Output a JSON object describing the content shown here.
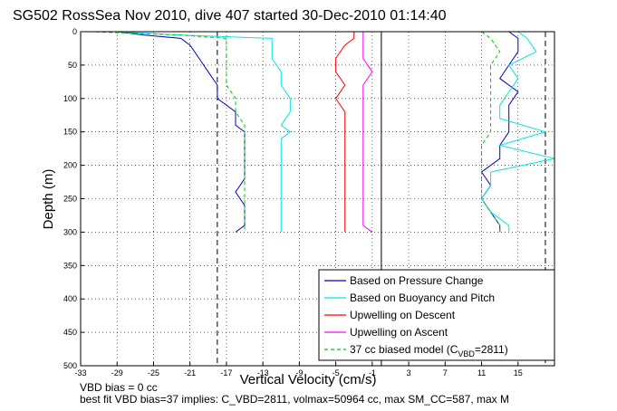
{
  "chart_data": {
    "type": "line",
    "title": "SG502 RossSea Nov 2010, dive 407 started 30-Dec-2010 01:14:40",
    "xlabel": "Vertical Velocity (cm/s)",
    "ylabel": "Depth (m)",
    "xlim": [
      -33,
      19
    ],
    "ylim": [
      500,
      0
    ],
    "y_reversed": true,
    "x_ticks": [
      "-33",
      "-29",
      "-25",
      "-21",
      "-17",
      "-13",
      "-9",
      "-5",
      "-1",
      "3",
      "7",
      "11",
      "15"
    ],
    "y_ticks": [
      "0",
      "50",
      "100",
      "150",
      "200",
      "250",
      "300",
      "350",
      "400",
      "450",
      "500"
    ],
    "grid": "dotted",
    "legend_position": "bottom-right",
    "reference_lines": [
      {
        "x": 0,
        "style": "solid",
        "color": "#000000"
      },
      {
        "x": -18,
        "style": "dashed",
        "color": "#000000"
      },
      {
        "x": 18,
        "style": "dashed",
        "color": "#000000"
      }
    ],
    "series": [
      {
        "name": "Based on Pressure Change",
        "color": "#0000cc",
        "style": "solid",
        "descent": [
          [
            -29,
            0
          ],
          [
            -26,
            5
          ],
          [
            -22,
            10
          ],
          [
            -21,
            20
          ],
          [
            -20,
            40
          ],
          [
            -19,
            60
          ],
          [
            -18,
            80
          ],
          [
            -18,
            100
          ],
          [
            -16,
            120
          ],
          [
            -16,
            140
          ],
          [
            -15,
            150
          ],
          [
            -15,
            160
          ],
          [
            -15,
            180
          ],
          [
            -15,
            200
          ],
          [
            -15,
            220
          ],
          [
            -16,
            240
          ],
          [
            -15,
            260
          ],
          [
            -15,
            280
          ],
          [
            -15,
            290
          ],
          [
            -16,
            300
          ]
        ],
        "ascent": [
          [
            13,
            300
          ],
          [
            13,
            290
          ],
          [
            12,
            270
          ],
          [
            11,
            250
          ],
          [
            12,
            230
          ],
          [
            11,
            210
          ],
          [
            13,
            190
          ],
          [
            13,
            170
          ],
          [
            14,
            150
          ],
          [
            14,
            130
          ],
          [
            14,
            110
          ],
          [
            15,
            90
          ],
          [
            13,
            70
          ],
          [
            14,
            50
          ],
          [
            15,
            30
          ],
          [
            15,
            10
          ],
          [
            14,
            0
          ]
        ]
      },
      {
        "name": "Based on Buoyancy and Pitch",
        "color": "#00e5e5",
        "style": "solid",
        "descent": [
          [
            -29,
            0
          ],
          [
            -22,
            5
          ],
          [
            -12,
            10
          ],
          [
            -12,
            20
          ],
          [
            -12,
            40
          ],
          [
            -11,
            60
          ],
          [
            -11,
            80
          ],
          [
            -10,
            100
          ],
          [
            -10,
            120
          ],
          [
            -11,
            140
          ],
          [
            -10,
            150
          ],
          [
            -11,
            160
          ],
          [
            -11,
            180
          ],
          [
            -11,
            200
          ],
          [
            -11,
            220
          ],
          [
            -11,
            240
          ],
          [
            -11,
            260
          ],
          [
            -11,
            280
          ],
          [
            -11,
            290
          ],
          [
            -11,
            300
          ]
        ],
        "ascent": [
          [
            14,
            300
          ],
          [
            14,
            290
          ],
          [
            12,
            270
          ],
          [
            11,
            250
          ],
          [
            12,
            230
          ],
          [
            12,
            210
          ],
          [
            19,
            190
          ],
          [
            13,
            170
          ],
          [
            18,
            150
          ],
          [
            13,
            130
          ],
          [
            13,
            110
          ],
          [
            14,
            90
          ],
          [
            15,
            70
          ],
          [
            14,
            50
          ],
          [
            17,
            30
          ],
          [
            16,
            10
          ],
          [
            15,
            0
          ]
        ]
      },
      {
        "name": "Upwelling on Descent",
        "color": "#ff0000",
        "style": "solid",
        "profile": [
          [
            -3,
            0
          ],
          [
            -3,
            10
          ],
          [
            -4,
            20
          ],
          [
            -5,
            40
          ],
          [
            -5,
            60
          ],
          [
            -4,
            80
          ],
          [
            -5,
            100
          ],
          [
            -4,
            120
          ],
          [
            -4,
            140
          ],
          [
            -4,
            160
          ],
          [
            -4,
            180
          ],
          [
            -4,
            200
          ],
          [
            -4,
            220
          ],
          [
            -4,
            240
          ],
          [
            -4,
            260
          ],
          [
            -4,
            280
          ],
          [
            -4,
            290
          ],
          [
            -4,
            300
          ]
        ]
      },
      {
        "name": "Upwelling on Ascent",
        "color": "#ff00ff",
        "style": "solid",
        "profile": [
          [
            -2,
            0
          ],
          [
            -2,
            10
          ],
          [
            -2,
            20
          ],
          [
            -2,
            40
          ],
          [
            -1,
            60
          ],
          [
            -2,
            80
          ],
          [
            -2,
            100
          ],
          [
            -2,
            120
          ],
          [
            -2,
            140
          ],
          [
            -2,
            160
          ],
          [
            -2,
            180
          ],
          [
            -2,
            200
          ],
          [
            -2,
            220
          ],
          [
            -2,
            240
          ],
          [
            -2,
            260
          ],
          [
            -2,
            280
          ],
          [
            -2,
            290
          ],
          [
            -1,
            300
          ]
        ]
      },
      {
        "name": "37 cc biased model (C_VBD=2811)",
        "color": "#00cc00",
        "style": "dashed",
        "descent": [
          [
            -32,
            0
          ],
          [
            -22,
            5
          ],
          [
            -17,
            10
          ],
          [
            -17,
            20
          ],
          [
            -17,
            40
          ],
          [
            -17,
            60
          ],
          [
            -17,
            80
          ],
          [
            -16,
            100
          ],
          [
            -16,
            120
          ],
          [
            -15,
            140
          ],
          [
            -15,
            150
          ],
          [
            -15,
            160
          ],
          [
            -15,
            180
          ],
          [
            -15,
            200
          ],
          [
            -15,
            220
          ],
          [
            -15,
            240
          ],
          [
            -15,
            260
          ],
          [
            -15,
            280
          ],
          [
            -15,
            290
          ],
          [
            -15,
            300
          ]
        ],
        "ascent": [
          [
            13,
            300
          ],
          [
            13,
            290
          ],
          [
            12,
            270
          ],
          [
            11,
            250
          ],
          [
            11,
            230
          ],
          [
            11,
            210
          ],
          [
            11,
            190
          ],
          [
            11,
            170
          ],
          [
            12,
            150
          ],
          [
            12,
            130
          ],
          [
            12,
            110
          ],
          [
            12,
            90
          ],
          [
            12,
            70
          ],
          [
            12,
            50
          ],
          [
            13,
            30
          ],
          [
            12,
            10
          ],
          [
            11,
            0
          ]
        ]
      }
    ],
    "legend": [
      {
        "label": "Based on Pressure Change",
        "color": "#0000cc",
        "style": "solid"
      },
      {
        "label": "Based on Buoyancy and Pitch",
        "color": "#00e5e5",
        "style": "solid"
      },
      {
        "label": "Upwelling on Descent",
        "color": "#ff0000",
        "style": "solid"
      },
      {
        "label": "Upwelling on Ascent",
        "color": "#ff00ff",
        "style": "solid"
      },
      {
        "label_main": "37 cc biased model (C",
        "label_sub": "VBD",
        "label_tail": "=2811)",
        "color": "#00cc00",
        "style": "dashed"
      }
    ],
    "footnotes": [
      "VBD bias = 0 cc",
      "best fit VBD bias=37 implies: C_VBD=2811, volmax=50964 cc, max SM_CC=587, max M"
    ]
  }
}
